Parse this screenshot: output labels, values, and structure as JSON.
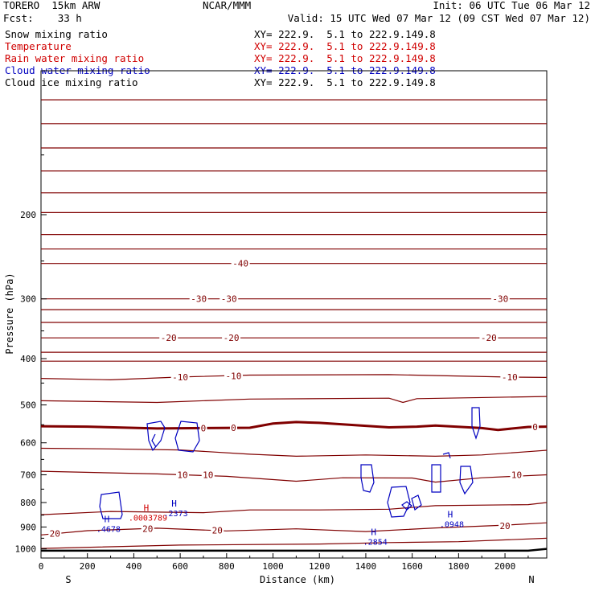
{
  "header": {
    "model": "TORERO  15km ARW",
    "center": "NCAR/MMM",
    "init": "Init: 06 UTC Tue 06 Mar 12",
    "fcst": "Fcst:    33 h",
    "valid": "Valid: 15 UTC Wed 07 Mar 12 (09 CST Wed 07 Mar 12)"
  },
  "fields": [
    {
      "label": "Snow mixing ratio",
      "xy": "XY= 222.9.  5.1 to 222.9.149.8",
      "color": "#000000"
    },
    {
      "label": "Temperature",
      "xy": "XY= 222.9.  5.1 to 222.9.149.8",
      "color": "#d00000"
    },
    {
      "label": "Rain water mixing ratio",
      "xy": "XY= 222.9.  5.1 to 222.9.149.8",
      "color": "#d00000"
    },
    {
      "label": "Cloud water mixing ratio",
      "xy": "XY= 222.9.  5.1 to 222.9.149.8",
      "color": "#0000c0"
    },
    {
      "label": "Cloud ice mixing ratio",
      "xy": "XY= 222.9.  5.1 to 222.9.149.8",
      "color": "#000000"
    }
  ],
  "chart_data": {
    "type": "contour",
    "xlabel": "Distance (km)",
    "ylabel": "Pressure (hPa)",
    "xlim": [
      0,
      2180
    ],
    "ylim": [
      1045,
      100
    ],
    "x_ticks": [
      0,
      200,
      400,
      600,
      800,
      1000,
      1200,
      1400,
      1600,
      1800,
      2000
    ],
    "x_tick_labels": [
      "0",
      "200",
      "400",
      "600",
      "800",
      "1000",
      "1200",
      "1400",
      "1600",
      "1800",
      "2000"
    ],
    "y_ticks": [
      200,
      300,
      400,
      500,
      600,
      700,
      800,
      900,
      1000
    ],
    "y_tick_labels": [
      "200",
      "300",
      "400",
      "500",
      "600",
      "700",
      "800",
      "900",
      "1000"
    ],
    "end_labels": {
      "left": "S",
      "right": "N"
    },
    "temperature_contour_color": "#800000",
    "zero_contour_color": "#800000",
    "temperature_isotherms": [
      {
        "name": "T-56",
        "points": [
          [
            0,
            115
          ],
          [
            2180,
            115
          ]
        ]
      },
      {
        "name": "T-54",
        "points": [
          [
            0,
            129
          ],
          [
            2180,
            129
          ]
        ]
      },
      {
        "name": "T-52",
        "points": [
          [
            0,
            145
          ],
          [
            2180,
            145
          ]
        ]
      },
      {
        "name": "T-50",
        "points": [
          [
            0,
            162
          ],
          [
            2180,
            162
          ]
        ]
      },
      {
        "name": "T-48",
        "points": [
          [
            0,
            180
          ],
          [
            2180,
            180
          ]
        ]
      },
      {
        "name": "T-46",
        "points": [
          [
            0,
            198
          ],
          [
            2180,
            198
          ]
        ]
      },
      {
        "name": "T-44",
        "points": [
          [
            0,
            220
          ],
          [
            2180,
            220
          ]
        ]
      },
      {
        "name": "T-42",
        "points": [
          [
            0,
            236
          ],
          [
            2180,
            236
          ]
        ]
      },
      {
        "name": "T-40",
        "points": [
          [
            0,
            253
          ],
          [
            2180,
            253
          ]
        ]
      },
      {
        "name": "T-30",
        "points": [
          [
            0,
            300
          ],
          [
            2180,
            300
          ]
        ]
      },
      {
        "name": "T-28",
        "points": [
          [
            0,
            316
          ],
          [
            2180,
            316
          ]
        ]
      },
      {
        "name": "T-26",
        "points": [
          [
            0,
            336
          ],
          [
            2180,
            336
          ]
        ]
      },
      {
        "name": "T-20",
        "points": [
          [
            0,
            362
          ],
          [
            2180,
            362
          ]
        ]
      },
      {
        "name": "T-18",
        "points": [
          [
            0,
            388
          ],
          [
            2180,
            388
          ]
        ]
      },
      {
        "name": "T-16",
        "points": [
          [
            0,
            405
          ],
          [
            2180,
            405
          ]
        ]
      },
      {
        "name": "T-10",
        "points": [
          [
            0,
            440
          ],
          [
            300,
            443
          ],
          [
            600,
            437
          ],
          [
            900,
            433
          ],
          [
            1500,
            432
          ],
          [
            2000,
            437
          ],
          [
            2180,
            438
          ]
        ]
      },
      {
        "name": "T-8",
        "points": [
          [
            0,
            490
          ],
          [
            500,
            494
          ],
          [
            900,
            486
          ],
          [
            1500,
            484
          ],
          [
            1560,
            494
          ],
          [
            1620,
            485
          ],
          [
            2180,
            480
          ]
        ]
      },
      {
        "name": "T0",
        "points": [
          [
            0,
            554
          ],
          [
            200,
            555
          ],
          [
            500,
            560
          ],
          [
            700,
            559
          ],
          [
            900,
            558
          ],
          [
            1000,
            547
          ],
          [
            1100,
            543
          ],
          [
            1200,
            545
          ],
          [
            1500,
            557
          ],
          [
            1620,
            555
          ],
          [
            1700,
            552
          ],
          [
            1900,
            559
          ],
          [
            1970,
            564
          ],
          [
            2100,
            556
          ],
          [
            2180,
            555
          ]
        ]
      },
      {
        "name": "T2",
        "points": [
          [
            0,
            616
          ],
          [
            300,
            618
          ],
          [
            600,
            621
          ],
          [
            900,
            634
          ],
          [
            1100,
            640
          ],
          [
            1400,
            636
          ],
          [
            1700,
            640
          ],
          [
            1900,
            636
          ],
          [
            2100,
            626
          ],
          [
            2180,
            622
          ]
        ]
      },
      {
        "name": "T10",
        "points": [
          [
            0,
            688
          ],
          [
            500,
            697
          ],
          [
            800,
            705
          ],
          [
            1100,
            722
          ],
          [
            1300,
            710
          ],
          [
            1600,
            711
          ],
          [
            1700,
            725
          ],
          [
            1900,
            710
          ],
          [
            2180,
            700
          ]
        ]
      },
      {
        "name": "T12",
        "points": [
          [
            0,
            848
          ],
          [
            300,
            835
          ],
          [
            700,
            840
          ],
          [
            900,
            829
          ],
          [
            1200,
            829
          ],
          [
            1500,
            826
          ],
          [
            1700,
            812
          ],
          [
            2100,
            808
          ],
          [
            2180,
            800
          ]
        ]
      },
      {
        "name": "T20",
        "points": [
          [
            0,
            935
          ],
          [
            200,
            916
          ],
          [
            500,
            905
          ],
          [
            800,
            917
          ],
          [
            1100,
            908
          ],
          [
            1400,
            920
          ],
          [
            1700,
            904
          ],
          [
            2000,
            892
          ],
          [
            2180,
            882
          ]
        ]
      },
      {
        "name": "T22",
        "points": [
          [
            0,
            998
          ],
          [
            600,
            982
          ],
          [
            1200,
            977
          ],
          [
            1500,
            970
          ],
          [
            1800,
            966
          ],
          [
            2180,
            950
          ]
        ]
      }
    ],
    "surface": {
      "name": "Surface",
      "points": [
        [
          0,
          1009
        ],
        [
          2100,
          1009
        ],
        [
          2180,
          1000
        ]
      ]
    },
    "contour_labels": [
      {
        "value": "-40",
        "x": 860,
        "p": 253
      },
      {
        "value": "-30",
        "x": 680,
        "p": 300
      },
      {
        "value": "-30",
        "x": 810,
        "p": 300
      },
      {
        "value": "-30",
        "x": 1980,
        "p": 300
      },
      {
        "value": "-20",
        "x": 550,
        "p": 362
      },
      {
        "value": "-20",
        "x": 820,
        "p": 362
      },
      {
        "value": "-20",
        "x": 1930,
        "p": 362
      },
      {
        "value": "-10",
        "x": 600,
        "p": 437
      },
      {
        "value": "-10",
        "x": 830,
        "p": 435
      },
      {
        "value": "-10",
        "x": 2020,
        "p": 437
      },
      {
        "value": "0",
        "x": 700,
        "p": 559
      },
      {
        "value": "0",
        "x": 830,
        "p": 558
      },
      {
        "value": "0",
        "x": 2130,
        "p": 556
      },
      {
        "value": "10",
        "x": 610,
        "p": 700
      },
      {
        "value": "10",
        "x": 720,
        "p": 700
      },
      {
        "value": "10",
        "x": 2050,
        "p": 700
      },
      {
        "value": "20",
        "x": 60,
        "p": 928
      },
      {
        "value": "20",
        "x": 460,
        "p": 908
      },
      {
        "value": "20",
        "x": 760,
        "p": 915
      },
      {
        "value": "20",
        "x": 2000,
        "p": 895
      }
    ],
    "maxima": [
      {
        "field": "Rain water mixing ratio",
        "marker": "H",
        "value": ".0003789",
        "x": 440,
        "p": 833,
        "color": "#d00000"
      },
      {
        "field": "Cloud water mixing ratio",
        "marker": "H",
        "value": ".2373",
        "x": 560,
        "p": 815,
        "color": "#0000c0"
      },
      {
        "field": "Cloud water mixing ratio",
        "marker": "H",
        "value": ".4678",
        "x": 270,
        "p": 880,
        "color": "#0000c0"
      },
      {
        "field": "Cloud water mixing ratio",
        "marker": "H",
        "value": ".2854",
        "x": 1420,
        "p": 935,
        "color": "#0000c0"
      },
      {
        "field": "Cloud water mixing ratio",
        "marker": "H",
        "value": ".0948",
        "x": 1750,
        "p": 860,
        "color": "#0000c0"
      }
    ],
    "cloud_water_color": "#0000c0"
  }
}
